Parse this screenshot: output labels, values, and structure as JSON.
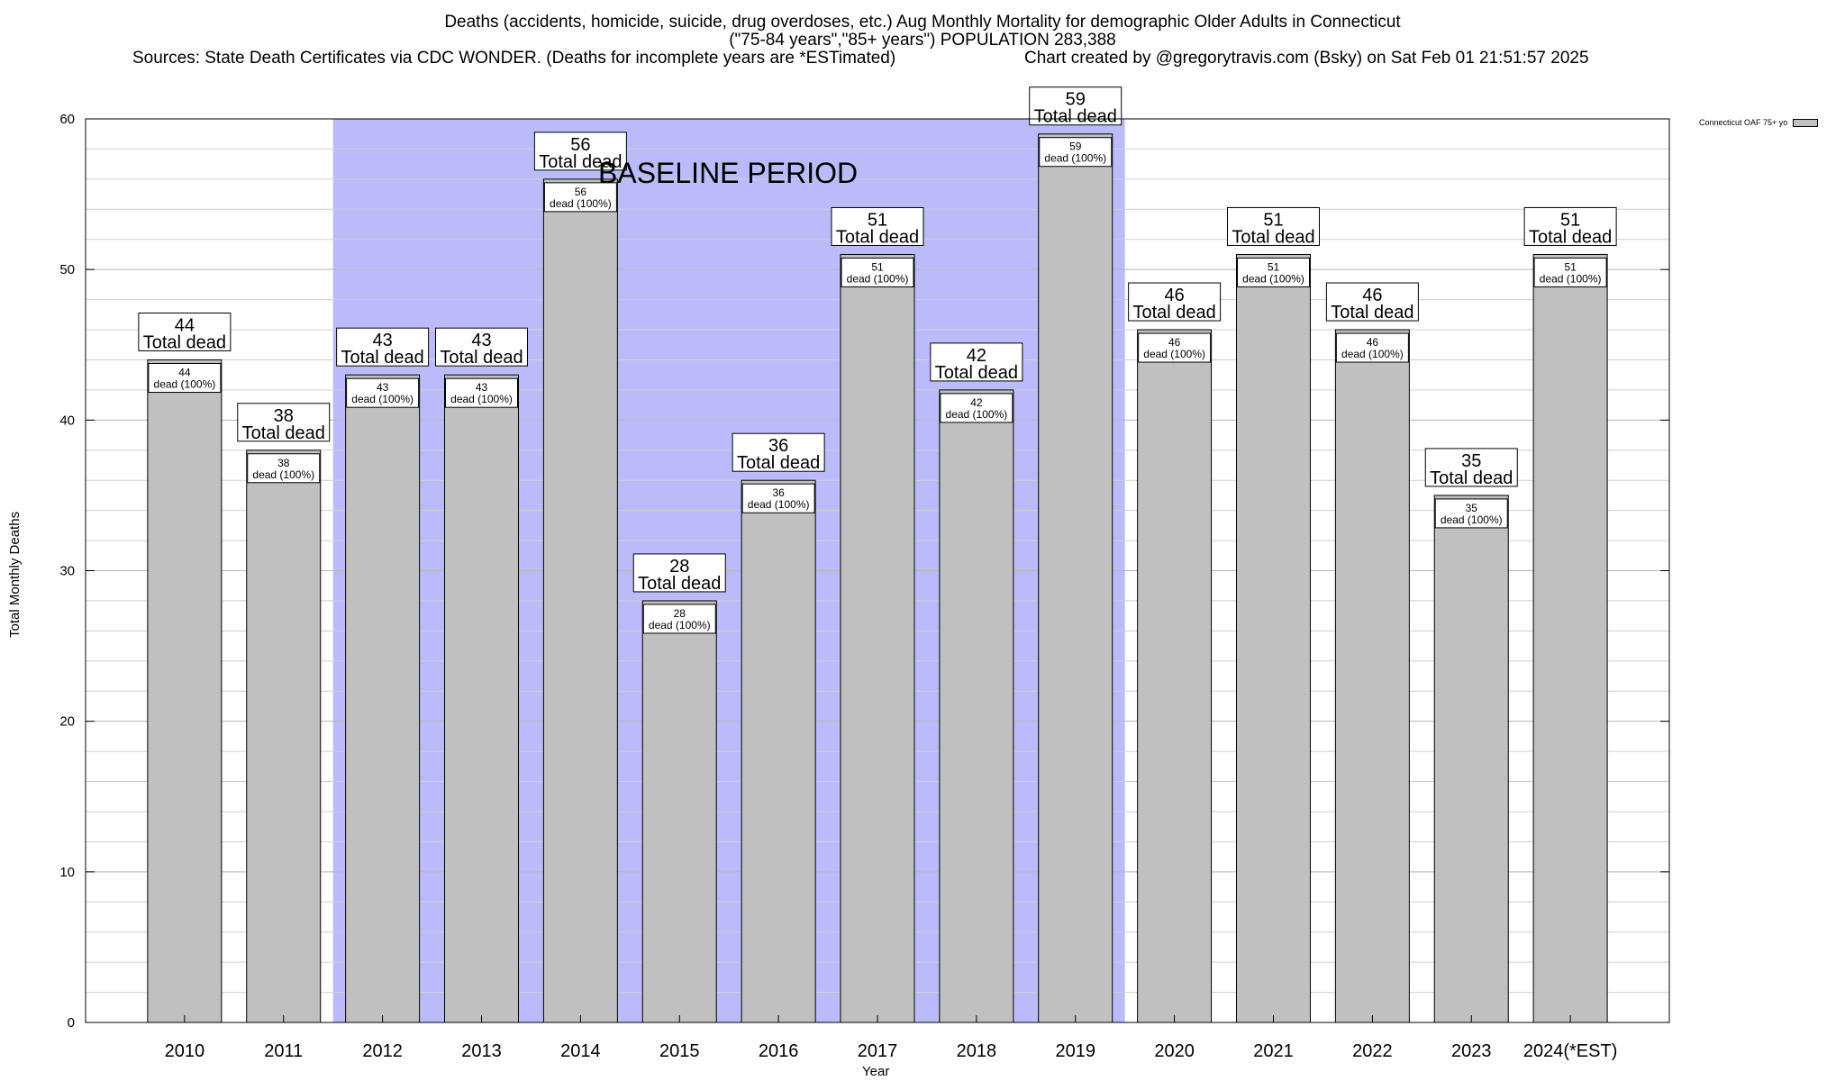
{
  "header": {
    "line1": "Deaths (accidents, homicide, suicide, drug overdoses, etc.) Aug Monthly Mortality for demographic Older Adults in Connecticut",
    "line2": "(\"75-84 years\",\"85+ years\") POPULATION 283,388",
    "sources": "Sources: State Death Certificates via CDC WONDER. (Deaths for incomplete years are *ESTimated)",
    "credit": "Chart created by @gregorytravis.com (Bsky) on Sat Feb 01 21:51:57 2025"
  },
  "chart_data": {
    "type": "bar",
    "xlabel": "Year",
    "ylabel": "Total Monthly Deaths",
    "ylim": [
      0,
      60
    ],
    "yticks": [
      0,
      10,
      20,
      30,
      40,
      50,
      60
    ],
    "categories": [
      "2010",
      "2011",
      "2012",
      "2013",
      "2014",
      "2015",
      "2016",
      "2017",
      "2018",
      "2019",
      "2020",
      "2021",
      "2022",
      "2023",
      "2024(*EST)"
    ],
    "series": [
      {
        "name": "Connecticut OAF 75+ yo",
        "color": "#c0c0c0",
        "values": [
          44,
          38,
          43,
          43,
          56,
          28,
          36,
          51,
          42,
          59,
          46,
          51,
          46,
          35,
          51
        ]
      }
    ],
    "top_label_text": "Total dead",
    "inner_label_text": "dead (100%)",
    "baseline": {
      "label": "BASELINE PERIOD",
      "from": "2012",
      "to": "2019",
      "color": "#bbbbfa"
    },
    "grid": true,
    "legend_position": "top-right"
  }
}
